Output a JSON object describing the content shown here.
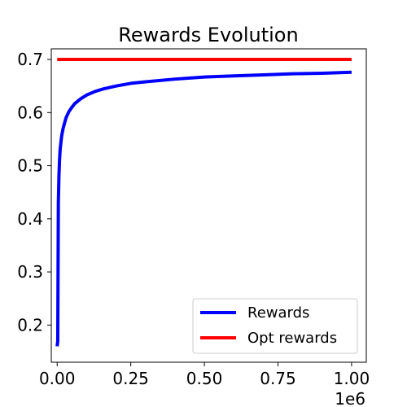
{
  "chart_data": {
    "type": "line",
    "title": "Rewards Evolution",
    "x_offset_label": "1e6",
    "xlim": [
      -0.02,
      1.05
    ],
    "ylim": [
      0.13,
      0.72
    ],
    "x_ticks": [
      0.0,
      0.25,
      0.5,
      0.75,
      1.0
    ],
    "x_tick_labels": [
      "0.00",
      "0.25",
      "0.50",
      "0.75",
      "1.00"
    ],
    "y_ticks": [
      0.2,
      0.3,
      0.4,
      0.5,
      0.6,
      0.7
    ],
    "y_tick_labels": [
      "0.2",
      "0.3",
      "0.4",
      "0.5",
      "0.6",
      "0.7"
    ],
    "grid": false,
    "legend_position": "lower-right",
    "series": [
      {
        "name": "Rewards",
        "color": "#0000ff",
        "x": [
          0.0,
          0.002,
          0.004,
          0.006,
          0.008,
          0.01,
          0.015,
          0.02,
          0.03,
          0.04,
          0.05,
          0.06,
          0.08,
          0.1,
          0.13,
          0.16,
          0.2,
          0.25,
          0.3,
          0.4,
          0.5,
          0.6,
          0.7,
          0.8,
          0.9,
          1.0
        ],
        "y": [
          0.16,
          0.17,
          0.43,
          0.48,
          0.51,
          0.53,
          0.555,
          0.57,
          0.59,
          0.602,
          0.61,
          0.617,
          0.626,
          0.633,
          0.64,
          0.645,
          0.65,
          0.655,
          0.658,
          0.663,
          0.667,
          0.669,
          0.671,
          0.673,
          0.674,
          0.676
        ]
      },
      {
        "name": "Opt rewards",
        "color": "#ff0000",
        "x": [
          0.0,
          1.0
        ],
        "y": [
          0.7,
          0.7
        ]
      }
    ]
  }
}
